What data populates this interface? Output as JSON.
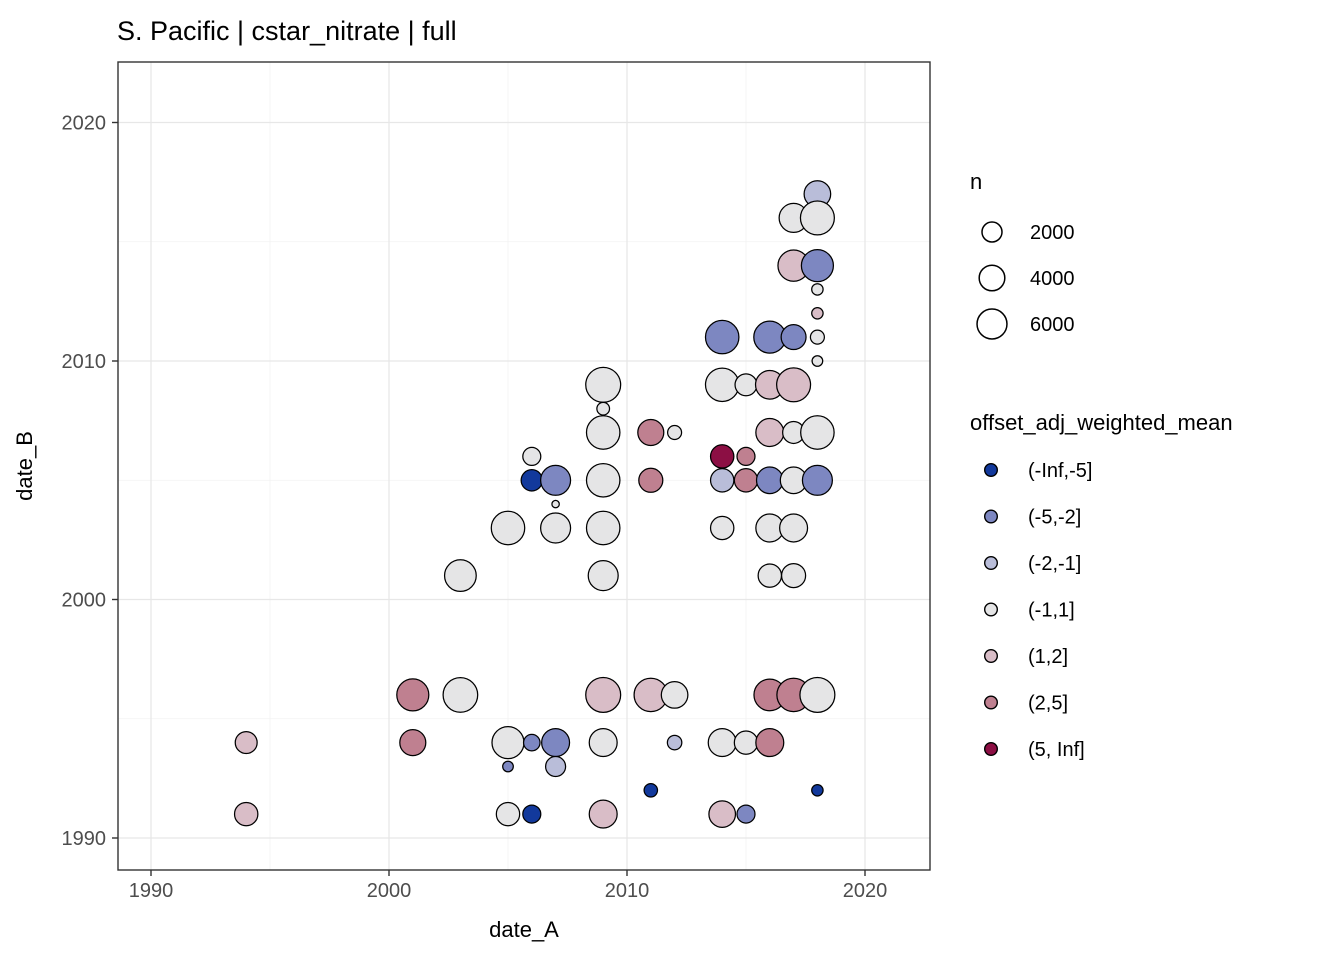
{
  "title": "S. Pacific | cstar_nitrate | full",
  "chart_data": {
    "type": "scatter",
    "title": "S. Pacific | cstar_nitrate | full",
    "xlabel": "date_A",
    "ylabel": "date_B",
    "xlim": [
      1988.6,
      2022.7
    ],
    "ylim": [
      1988.6,
      2022.5
    ],
    "x_ticks": [
      1990,
      2000,
      2010,
      2020
    ],
    "y_ticks": [
      1990,
      2000,
      2010,
      2020
    ],
    "x_minor": [
      1995,
      2005,
      2015
    ],
    "y_minor": [
      1995,
      2005,
      2015
    ],
    "grid": true,
    "legend_position": "right",
    "size_legend": {
      "title": "n",
      "values": [
        2000,
        4000,
        6000
      ]
    },
    "color_legend": {
      "title": "offset_adj_weighted_mean",
      "bins": [
        {
          "label": "(-Inf,-5]",
          "color": "#12399c"
        },
        {
          "label": "(-5,-2]",
          "color": "#7d87c1"
        },
        {
          "label": "(-2,-1]",
          "color": "#b9bdd9"
        },
        {
          "label": "(-1,1]",
          "color": "#e5e5e6"
        },
        {
          "label": "(1,2]",
          "color": "#d9bdc7"
        },
        {
          "label": "(2,5]",
          "color": "#bf8090"
        },
        {
          "label": "(5, Inf]",
          "color": "#8c0f44"
        }
      ]
    },
    "points": [
      {
        "a": 1994,
        "b": 1994,
        "n": 2600,
        "bin": "(1,2]"
      },
      {
        "a": 1994,
        "b": 1991,
        "n": 3100,
        "bin": "(1,2]"
      },
      {
        "a": 2001,
        "b": 1996,
        "n": 7100,
        "bin": "(2,5]"
      },
      {
        "a": 2001,
        "b": 1994,
        "n": 4150,
        "bin": "(2,5]"
      },
      {
        "a": 2003,
        "b": 2001,
        "n": 6900,
        "bin": "(-1,1]"
      },
      {
        "a": 2003,
        "b": 1996,
        "n": 8600,
        "bin": "(-1,1]"
      },
      {
        "a": 2005,
        "b": 2003,
        "n": 7900,
        "bin": "(-1,1]"
      },
      {
        "a": 2005,
        "b": 1994,
        "n": 7100,
        "bin": "(-1,1]"
      },
      {
        "a": 2005,
        "b": 1993,
        "n": 190,
        "bin": "(-5,-2]"
      },
      {
        "a": 2005,
        "b": 1991,
        "n": 3100,
        "bin": "(-1,1]"
      },
      {
        "a": 2006,
        "b": 2006,
        "n": 1450,
        "bin": "(-1,1]"
      },
      {
        "a": 2006,
        "b": 2005,
        "n": 2400,
        "bin": "(-Inf,-5]"
      },
      {
        "a": 2006,
        "b": 1994,
        "n": 1100,
        "bin": "(-5,-2]"
      },
      {
        "a": 2006,
        "b": 1991,
        "n": 1450,
        "bin": "(-Inf,-5]"
      },
      {
        "a": 2007,
        "b": 2005,
        "n": 6000,
        "bin": "(-5,-2]"
      },
      {
        "a": 2007,
        "b": 2004,
        "n": 10,
        "bin": "(-1,1]"
      },
      {
        "a": 2007,
        "b": 2003,
        "n": 6000,
        "bin": "(-1,1]"
      },
      {
        "a": 2007,
        "b": 1994,
        "n": 5000,
        "bin": "(-5,-2]"
      },
      {
        "a": 2007,
        "b": 1993,
        "n": 2000,
        "bin": "(-2,-1]"
      },
      {
        "a": 2009,
        "b": 2009,
        "n": 8800,
        "bin": "(-1,1]"
      },
      {
        "a": 2009,
        "b": 2008,
        "n": 420,
        "bin": "(-1,1]"
      },
      {
        "a": 2009,
        "b": 2007,
        "n": 7900,
        "bin": "(-1,1]"
      },
      {
        "a": 2009,
        "b": 2005,
        "n": 7900,
        "bin": "(-1,1]"
      },
      {
        "a": 2009,
        "b": 2003,
        "n": 7900,
        "bin": "(-1,1]"
      },
      {
        "a": 2009,
        "b": 2001,
        "n": 6000,
        "bin": "(-1,1]"
      },
      {
        "a": 2009,
        "b": 1996,
        "n": 8800,
        "bin": "(1,2]"
      },
      {
        "a": 2009,
        "b": 1994,
        "n": 5000,
        "bin": "(-1,1]"
      },
      {
        "a": 2009,
        "b": 1991,
        "n": 5000,
        "bin": "(1,2]"
      },
      {
        "a": 2011,
        "b": 2007,
        "n": 4150,
        "bin": "(2,5]"
      },
      {
        "a": 2011,
        "b": 2005,
        "n": 3350,
        "bin": "(2,5]"
      },
      {
        "a": 2011,
        "b": 1996,
        "n": 7900,
        "bin": "(1,2]"
      },
      {
        "a": 2011,
        "b": 1992,
        "n": 530,
        "bin": "(-Inf,-5]"
      },
      {
        "a": 2012,
        "b": 2007,
        "n": 620,
        "bin": "(-1,1]"
      },
      {
        "a": 2012,
        "b": 1996,
        "n": 4400,
        "bin": "(-1,1]"
      },
      {
        "a": 2012,
        "b": 1994,
        "n": 700,
        "bin": "(-2,-1]"
      },
      {
        "a": 2014,
        "b": 2011,
        "n": 7900,
        "bin": "(-5,-2]"
      },
      {
        "a": 2014,
        "b": 2009,
        "n": 7900,
        "bin": "(-1,1]"
      },
      {
        "a": 2014,
        "b": 2006,
        "n": 3100,
        "bin": "(5, Inf]"
      },
      {
        "a": 2014,
        "b": 2005,
        "n": 3100,
        "bin": "(-2,-1]"
      },
      {
        "a": 2014,
        "b": 2003,
        "n": 3100,
        "bin": "(-1,1]"
      },
      {
        "a": 2014,
        "b": 1994,
        "n": 5000,
        "bin": "(-1,1]"
      },
      {
        "a": 2014,
        "b": 1991,
        "n": 4400,
        "bin": "(1,2]"
      },
      {
        "a": 2015,
        "b": 2009,
        "n": 2600,
        "bin": "(-1,1]"
      },
      {
        "a": 2015,
        "b": 2006,
        "n": 1450,
        "bin": "(2,5]"
      },
      {
        "a": 2015,
        "b": 2005,
        "n": 3100,
        "bin": "(2,5]"
      },
      {
        "a": 2015,
        "b": 1994,
        "n": 3100,
        "bin": "(-1,1]"
      },
      {
        "a": 2015,
        "b": 1991,
        "n": 1450,
        "bin": "(-5,-2]"
      },
      {
        "a": 2016,
        "b": 2011,
        "n": 7100,
        "bin": "(-5,-2]"
      },
      {
        "a": 2016,
        "b": 2009,
        "n": 5300,
        "bin": "(1,2]"
      },
      {
        "a": 2016,
        "b": 2007,
        "n": 5000,
        "bin": "(1,2]"
      },
      {
        "a": 2016,
        "b": 2005,
        "n": 4400,
        "bin": "(-5,-2]"
      },
      {
        "a": 2016,
        "b": 2003,
        "n": 5000,
        "bin": "(-1,1]"
      },
      {
        "a": 2016,
        "b": 2001,
        "n": 3100,
        "bin": "(-1,1]"
      },
      {
        "a": 2016,
        "b": 1996,
        "n": 6900,
        "bin": "(2,5]"
      },
      {
        "a": 2016,
        "b": 1994,
        "n": 5000,
        "bin": "(2,5]"
      },
      {
        "a": 2017,
        "b": 2016,
        "n": 5500,
        "bin": "(-1,1]"
      },
      {
        "a": 2017,
        "b": 2014,
        "n": 6700,
        "bin": "(1,2]"
      },
      {
        "a": 2017,
        "b": 2011,
        "n": 3700,
        "bin": "(-5,-2]"
      },
      {
        "a": 2017,
        "b": 2009,
        "n": 8200,
        "bin": "(1,2]"
      },
      {
        "a": 2017,
        "b": 2007,
        "n": 2600,
        "bin": "(-1,1]"
      },
      {
        "a": 2017,
        "b": 2005,
        "n": 4400,
        "bin": "(-1,1]"
      },
      {
        "a": 2017,
        "b": 2003,
        "n": 5000,
        "bin": "(-1,1]"
      },
      {
        "a": 2017,
        "b": 2001,
        "n": 3350,
        "bin": "(-1,1]"
      },
      {
        "a": 2017,
        "b": 1996,
        "n": 7900,
        "bin": "(2,5]"
      },
      {
        "a": 2018,
        "b": 2017,
        "n": 4400,
        "bin": "(-2,-1]"
      },
      {
        "a": 2018,
        "b": 2016,
        "n": 8200,
        "bin": "(-1,1]"
      },
      {
        "a": 2018,
        "b": 2014,
        "n": 7100,
        "bin": "(-5,-2]"
      },
      {
        "a": 2018,
        "b": 2013,
        "n": 270,
        "bin": "(-1,1]"
      },
      {
        "a": 2018,
        "b": 2012,
        "n": 270,
        "bin": "(1,2]"
      },
      {
        "a": 2018,
        "b": 2011,
        "n": 620,
        "bin": "(-1,1]"
      },
      {
        "a": 2018,
        "b": 2010,
        "n": 190,
        "bin": "(-1,1]"
      },
      {
        "a": 2018,
        "b": 2007,
        "n": 7900,
        "bin": "(-1,1]"
      },
      {
        "a": 2018,
        "b": 2005,
        "n": 6000,
        "bin": "(-5,-2]"
      },
      {
        "a": 2018,
        "b": 1996,
        "n": 8800,
        "bin": "(-1,1]"
      },
      {
        "a": 2018,
        "b": 1992,
        "n": 270,
        "bin": "(-Inf,-5]"
      }
    ]
  },
  "style_colors": {
    "panel_border": "#333333",
    "grid_major": "#e7e7e7",
    "grid_minor": "#f2f2f2",
    "point_stroke": "#000000",
    "tick_text": "#4d4d4d"
  }
}
